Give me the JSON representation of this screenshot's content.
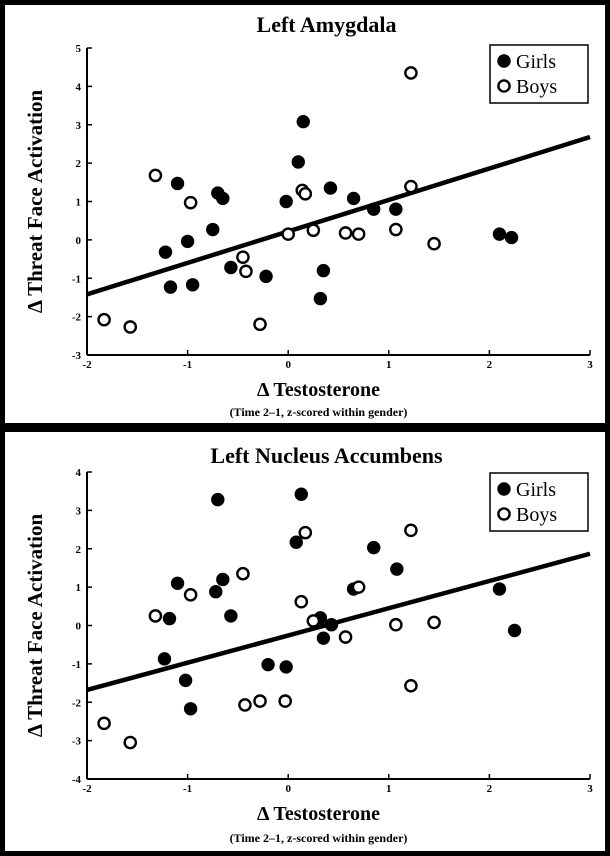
{
  "chart_data": [
    {
      "type": "scatter",
      "title": "Left Amygdala",
      "xlabel": "Δ Testosterone",
      "xsub": "(Time 2–1, z-scored within gender)",
      "ylabel": "Δ Threat Face Activation",
      "xlim": [
        -2,
        3
      ],
      "ylim": [
        -3,
        5
      ],
      "xticks": [
        -2,
        -1,
        0,
        1,
        2,
        3
      ],
      "yticks": [
        -3,
        -2,
        -1,
        0,
        1,
        2,
        3,
        4,
        5
      ],
      "legend_position": "top-right",
      "fit_line": {
        "x": [
          -2,
          3
        ],
        "y": [
          -1.42,
          2.68
        ]
      },
      "series": [
        {
          "name": "Girls",
          "marker": "filled",
          "points": [
            [
              0.15,
              3.08
            ],
            [
              0.1,
              2.03
            ],
            [
              -1.1,
              1.47
            ],
            [
              -0.7,
              1.22
            ],
            [
              -0.65,
              1.08
            ],
            [
              0.42,
              1.35
            ],
            [
              -0.75,
              0.27
            ],
            [
              0.65,
              1.08
            ],
            [
              0.85,
              0.8
            ],
            [
              -0.02,
              1.0
            ],
            [
              1.07,
              0.8
            ],
            [
              -1.0,
              -0.04
            ],
            [
              -1.22,
              -0.32
            ],
            [
              -0.57,
              -0.72
            ],
            [
              -1.17,
              -1.23
            ],
            [
              -0.95,
              -1.17
            ],
            [
              -0.22,
              -0.95
            ],
            [
              0.35,
              -0.8
            ],
            [
              0.32,
              -1.53
            ],
            [
              2.1,
              0.15
            ],
            [
              2.22,
              0.06
            ]
          ]
        },
        {
          "name": "Boys",
          "marker": "open",
          "points": [
            [
              1.22,
              4.35
            ],
            [
              -1.32,
              1.68
            ],
            [
              -0.97,
              0.97
            ],
            [
              0.14,
              1.29
            ],
            [
              0.17,
              1.2
            ],
            [
              1.22,
              1.39
            ],
            [
              0.0,
              0.15
            ],
            [
              0.25,
              0.25
            ],
            [
              0.57,
              0.18
            ],
            [
              0.7,
              0.15
            ],
            [
              1.07,
              0.27
            ],
            [
              1.45,
              -0.1
            ],
            [
              -0.45,
              -0.45
            ],
            [
              -0.42,
              -0.82
            ],
            [
              -1.83,
              -2.08
            ],
            [
              -1.57,
              -2.27
            ],
            [
              -0.28,
              -2.2
            ]
          ]
        }
      ]
    },
    {
      "type": "scatter",
      "title": "Left Nucleus Accumbens",
      "xlabel": "Δ Testosterone",
      "xsub": "(Time 2–1, z-scored within gender)",
      "ylabel": "Δ Threat Face Activation",
      "xlim": [
        -2,
        3
      ],
      "ylim": [
        -4,
        4
      ],
      "xticks": [
        -2,
        -1,
        0,
        1,
        2,
        3
      ],
      "yticks": [
        -4,
        -3,
        -2,
        -1,
        0,
        1,
        2,
        3,
        4
      ],
      "legend_position": "top-right",
      "fit_line": {
        "x": [
          -2,
          3
        ],
        "y": [
          -1.68,
          1.87
        ]
      },
      "series": [
        {
          "name": "Girls",
          "marker": "filled",
          "points": [
            [
              0.13,
              3.42
            ],
            [
              -0.7,
              3.28
            ],
            [
              0.08,
              2.17
            ],
            [
              0.85,
              2.03
            ],
            [
              1.08,
              1.47
            ],
            [
              -0.65,
              1.2
            ],
            [
              -1.1,
              1.1
            ],
            [
              -0.72,
              0.88
            ],
            [
              -0.57,
              0.25
            ],
            [
              -1.18,
              0.18
            ],
            [
              0.65,
              0.95
            ],
            [
              0.32,
              0.2
            ],
            [
              0.43,
              0.02
            ],
            [
              0.35,
              -0.33
            ],
            [
              2.1,
              0.95
            ],
            [
              2.25,
              -0.13
            ],
            [
              -1.23,
              -0.87
            ],
            [
              -1.02,
              -1.43
            ],
            [
              -0.2,
              -1.02
            ],
            [
              -0.02,
              -1.08
            ],
            [
              -0.97,
              -2.17
            ]
          ]
        },
        {
          "name": "Boys",
          "marker": "open",
          "points": [
            [
              0.17,
              2.42
            ],
            [
              1.22,
              2.48
            ],
            [
              -0.45,
              1.35
            ],
            [
              -0.97,
              0.8
            ],
            [
              0.7,
              1.0
            ],
            [
              -1.32,
              0.25
            ],
            [
              0.13,
              0.62
            ],
            [
              0.25,
              0.12
            ],
            [
              0.57,
              -0.3
            ],
            [
              1.07,
              0.02
            ],
            [
              1.45,
              0.08
            ],
            [
              1.22,
              -1.57
            ],
            [
              -0.28,
              -1.97
            ],
            [
              -0.03,
              -1.97
            ],
            [
              -0.43,
              -2.07
            ],
            [
              -1.83,
              -2.55
            ],
            [
              -1.57,
              -3.05
            ]
          ]
        }
      ]
    }
  ]
}
